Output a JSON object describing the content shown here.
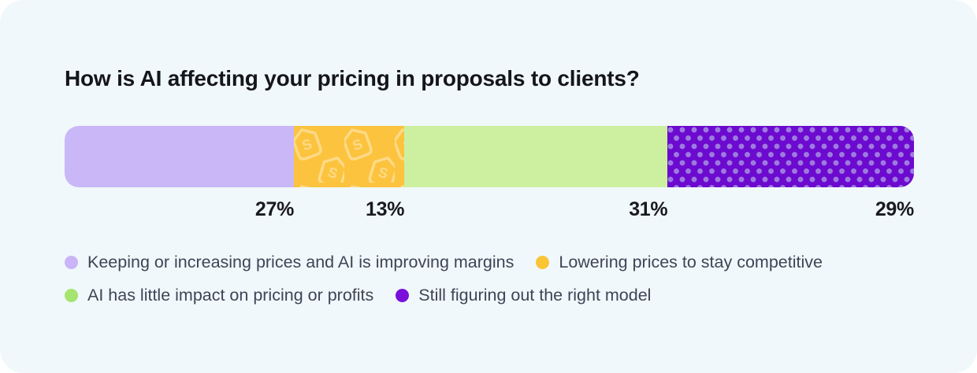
{
  "card": {
    "background_color": "#F0F8FB"
  },
  "title": "How is AI affecting your pricing in proposals to clients?",
  "chart_data": {
    "type": "bar",
    "variant": "horizontal-stacked-100-percent",
    "title": "How is AI affecting your pricing in proposals to clients?",
    "categories": [
      "Keeping or increasing prices and AI is improving margins",
      "Lowering prices to stay competitive",
      "AI has little impact on pricing or profits",
      "Still figuring out the right model"
    ],
    "values": [
      27,
      13,
      31,
      29
    ],
    "value_labels": [
      "27%",
      "13%",
      "31%",
      "29%"
    ],
    "xlim": [
      0,
      100
    ],
    "grid": false,
    "legend_position": "bottom",
    "segments": [
      {
        "label": "Keeping or increasing prices and AI is improving margins",
        "value": 27,
        "display": "27%",
        "color": "#C9B7F8",
        "pattern": "solid"
      },
      {
        "label": "Lowering prices to stay competitive",
        "value": 13,
        "display": "13%",
        "color": "#FCC33E",
        "pattern": "price-tags",
        "pattern_color": "rgba(255,255,255,0.38)"
      },
      {
        "label": "AI has little impact on pricing or profits",
        "value": 31,
        "display": "31%",
        "color": "#CDF0A0",
        "pattern": "solid"
      },
      {
        "label": "Still figuring out the right model",
        "value": 29,
        "display": "29%",
        "color": "#6C0ACF",
        "pattern": "polka-dots",
        "pattern_color": "#9E7ADF"
      }
    ],
    "legend": [
      {
        "label": "Keeping or increasing prices and AI is improving margins",
        "dot_color": "#C9B4F7"
      },
      {
        "label": "Lowering prices to stay competitive",
        "dot_color": "#FBC437"
      },
      {
        "label": "AI has little impact on pricing or profits",
        "dot_color": "#A5E46E"
      },
      {
        "label": "Still figuring out the right model",
        "dot_color": "#7A10DA"
      }
    ]
  }
}
